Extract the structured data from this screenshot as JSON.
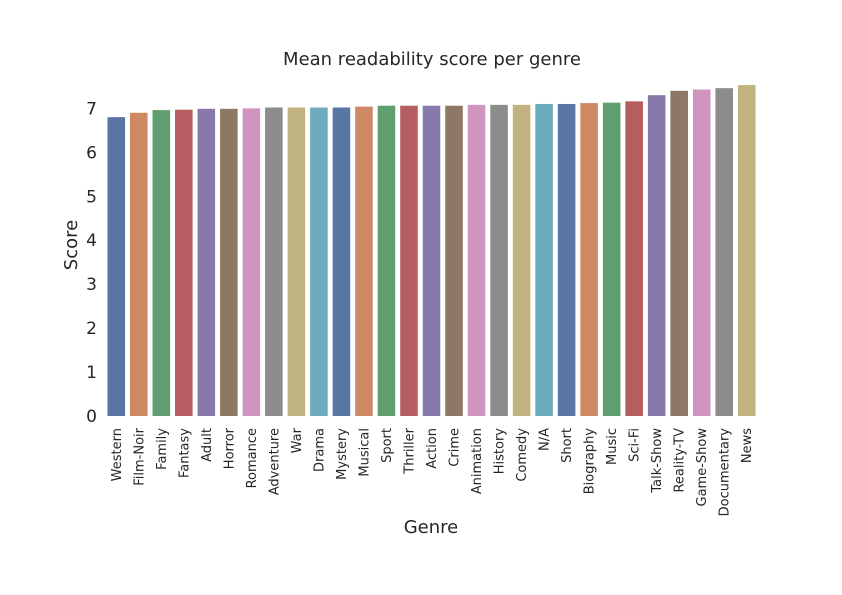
{
  "chart_data": {
    "type": "bar",
    "title": "Mean readability score per genre",
    "xlabel": "Genre",
    "ylabel": "Score",
    "ylim": [
      0,
      7.6
    ],
    "yticks": [
      0,
      1,
      2,
      3,
      4,
      5,
      6,
      7
    ],
    "grid": false,
    "categories": [
      "Western",
      "Film-Noir",
      "Family",
      "Fantasy",
      "Adult",
      "Horror",
      "Romance",
      "Adventure",
      "War",
      "Drama",
      "Mystery",
      "Musical",
      "Sport",
      "Thriller",
      "Action",
      "Crime",
      "Animation",
      "History",
      "Comedy",
      "N/A",
      "Short",
      "Biography",
      "Music",
      "Sci-Fi",
      "Talk-Show",
      "Reality-TV",
      "Game-Show",
      "Documentary",
      "News"
    ],
    "values": [
      6.8,
      6.9,
      6.96,
      6.97,
      6.99,
      6.99,
      7.0,
      7.02,
      7.02,
      7.02,
      7.02,
      7.04,
      7.06,
      7.06,
      7.06,
      7.06,
      7.08,
      7.08,
      7.08,
      7.1,
      7.1,
      7.12,
      7.13,
      7.16,
      7.3,
      7.4,
      7.43,
      7.46,
      7.53
    ],
    "colors": [
      "#5975a4",
      "#cc8963",
      "#5f9e6e",
      "#b55d60",
      "#857aab",
      "#8d7866",
      "#d095bf",
      "#8c8c8c",
      "#c1b37f",
      "#6dabbe"
    ]
  }
}
